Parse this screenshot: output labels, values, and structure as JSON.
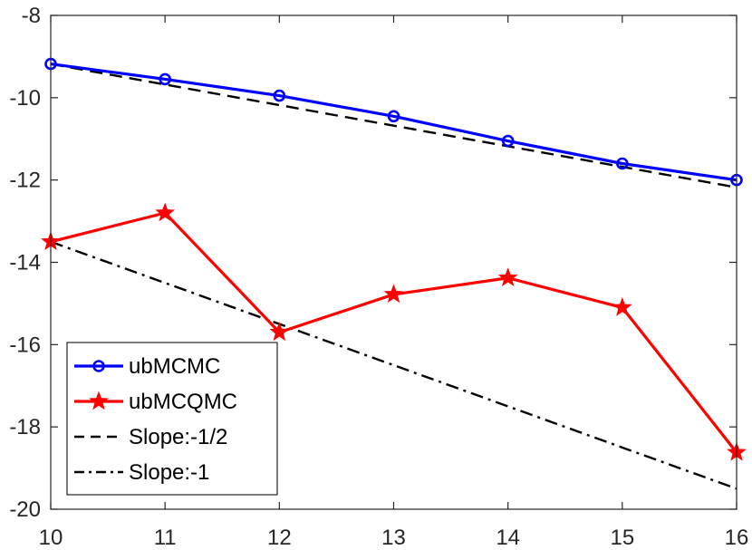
{
  "chart_data": {
    "type": "line",
    "title": "",
    "xlabel": "",
    "ylabel": "",
    "xlim": [
      10,
      16
    ],
    "ylim": [
      -20,
      -8
    ],
    "xticks": [
      10,
      11,
      12,
      13,
      14,
      15,
      16
    ],
    "yticks": [
      -20,
      -18,
      -16,
      -14,
      -12,
      -10,
      -8
    ],
    "legend_position": "bottom-left",
    "series": [
      {
        "name": "ubMCMC",
        "color": "#0000ff",
        "marker": "circle",
        "linestyle": "solid",
        "x": [
          10,
          11,
          12,
          13,
          14,
          15,
          16
        ],
        "y": [
          -9.18,
          -9.55,
          -9.95,
          -10.45,
          -11.05,
          -11.6,
          -12.0
        ]
      },
      {
        "name": "ubMCQMC",
        "color": "#ff0000",
        "marker": "star",
        "linestyle": "solid",
        "x": [
          10,
          11,
          12,
          13,
          14,
          15,
          16
        ],
        "y": [
          -13.5,
          -12.8,
          -15.7,
          -14.78,
          -14.38,
          -15.1,
          -18.62
        ]
      },
      {
        "name": "Slope:-1/2",
        "color": "#000000",
        "marker": "none",
        "linestyle": "dashed",
        "x": [
          10,
          16
        ],
        "y": [
          -9.18,
          -12.18
        ]
      },
      {
        "name": "Slope:-1",
        "color": "#000000",
        "marker": "none",
        "linestyle": "dashdot",
        "x": [
          10,
          16
        ],
        "y": [
          -13.5,
          -19.5
        ]
      }
    ]
  }
}
